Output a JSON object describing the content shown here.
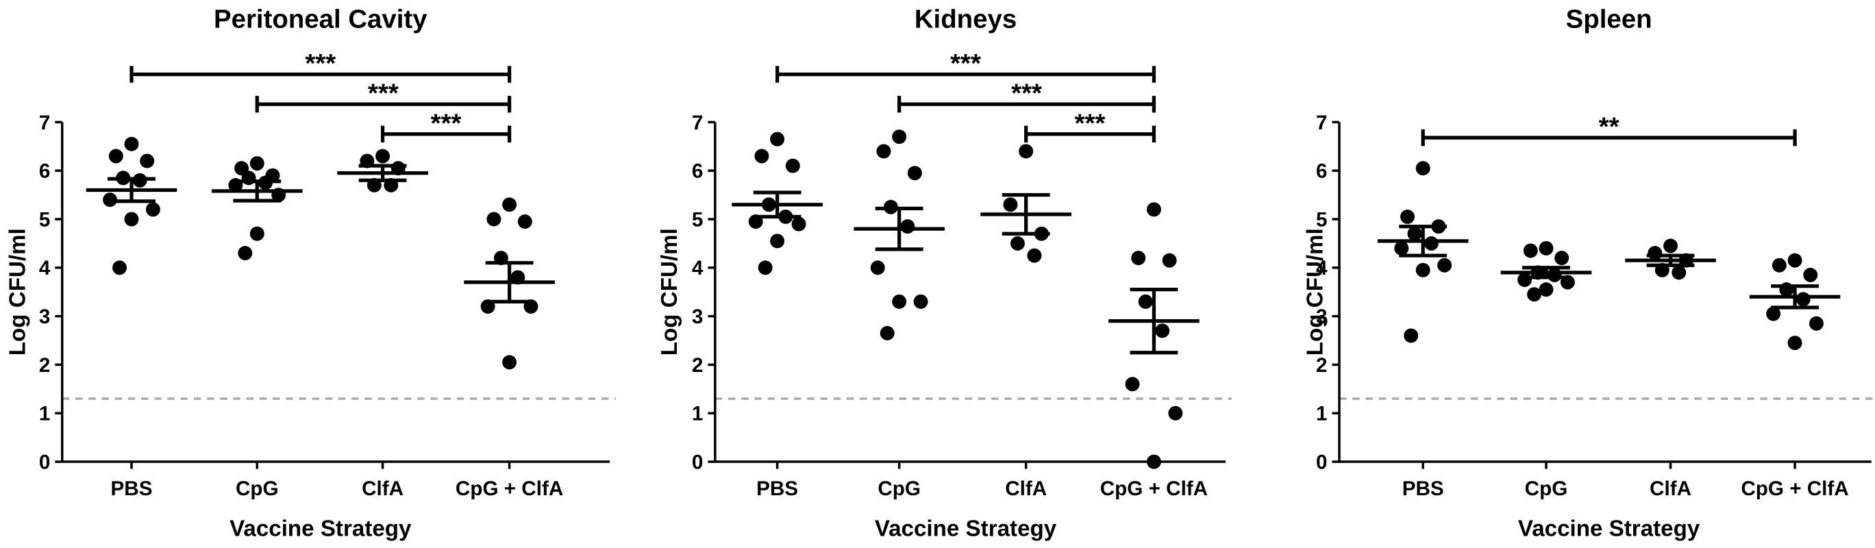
{
  "chart_data": [
    {
      "type": "dotplot",
      "title": "Peritoneal Cavity",
      "xlabel": "Vaccine Strategy",
      "ylabel": "Log CFU/ml",
      "categories": [
        "PBS",
        "CpG",
        "ClfA",
        "CpG + ClfA"
      ],
      "points": [
        [
          6.55,
          6.3,
          6.2,
          5.85,
          5.8,
          5.4,
          5.2,
          5.0,
          4.0
        ],
        [
          6.15,
          6.05,
          5.9,
          5.85,
          5.75,
          5.7,
          5.5,
          4.7,
          4.3
        ],
        [
          6.3,
          6.2,
          6.05,
          5.7,
          5.7
        ],
        [
          5.3,
          5.0,
          4.95,
          4.2,
          3.8,
          3.2,
          3.2,
          2.05
        ]
      ],
      "means": [
        5.6,
        5.58,
        5.95,
        3.7
      ],
      "sems": [
        0.23,
        0.2,
        0.15,
        0.4
      ],
      "ylim": [
        0,
        7
      ],
      "yticks": [
        0,
        1,
        2,
        3,
        4,
        5,
        6,
        7
      ],
      "threshold": 1.3,
      "comparisons": [
        {
          "between": [
            "PBS",
            "CpG + ClfA"
          ],
          "label": "***"
        },
        {
          "between": [
            "CpG",
            "CpG + ClfA"
          ],
          "label": "***"
        },
        {
          "between": [
            "ClfA",
            "CpG + ClfA"
          ],
          "label": "***"
        }
      ]
    },
    {
      "type": "dotplot",
      "title": "Kidneys",
      "xlabel": "Vaccine Strategy",
      "ylabel": "Log CFU/ml",
      "categories": [
        "PBS",
        "CpG",
        "ClfA",
        "CpG + ClfA"
      ],
      "points": [
        [
          6.65,
          6.3,
          6.1,
          5.3,
          5.05,
          4.95,
          4.9,
          4.55,
          4.0
        ],
        [
          6.7,
          6.4,
          5.95,
          5.25,
          4.85,
          4.0,
          3.3,
          3.3,
          2.65
        ],
        [
          6.4,
          5.3,
          4.7,
          4.5,
          4.25
        ],
        [
          5.2,
          4.2,
          4.15,
          3.3,
          2.7,
          1.6,
          1.0,
          0.0
        ]
      ],
      "means": [
        5.3,
        4.8,
        5.1,
        2.9
      ],
      "sems": [
        0.25,
        0.42,
        0.4,
        0.65
      ],
      "ylim": [
        0,
        7
      ],
      "yticks": [
        0,
        1,
        2,
        3,
        4,
        5,
        6,
        7
      ],
      "threshold": 1.3,
      "comparisons": [
        {
          "between": [
            "PBS",
            "CpG + ClfA"
          ],
          "label": "***"
        },
        {
          "between": [
            "CpG",
            "CpG + ClfA"
          ],
          "label": "***"
        },
        {
          "between": [
            "ClfA",
            "CpG + ClfA"
          ],
          "label": "***"
        }
      ]
    },
    {
      "type": "dotplot",
      "title": "Spleen",
      "xlabel": "Vaccine Strategy",
      "ylabel": "Log CFU/ml",
      "categories": [
        "PBS",
        "CpG",
        "ClfA",
        "CpG + ClfA"
      ],
      "points": [
        [
          6.05,
          5.05,
          4.85,
          4.7,
          4.5,
          4.4,
          4.05,
          3.95,
          2.6
        ],
        [
          4.4,
          4.35,
          4.2,
          3.9,
          3.85,
          3.75,
          3.7,
          3.55,
          3.45
        ],
        [
          4.45,
          4.3,
          4.15,
          3.95,
          3.9
        ],
        [
          4.15,
          4.05,
          3.85,
          3.55,
          3.35,
          3.05,
          2.85,
          2.45
        ]
      ],
      "means": [
        4.55,
        3.9,
        4.15,
        3.4
      ],
      "sems": [
        0.3,
        0.1,
        0.1,
        0.22
      ],
      "ylim": [
        0,
        7
      ],
      "yticks": [
        0,
        1,
        2,
        3,
        4,
        5,
        6,
        7
      ],
      "threshold": 1.3,
      "comparisons": [
        {
          "between": [
            "PBS",
            "CpG + ClfA"
          ],
          "label": "**"
        }
      ]
    }
  ]
}
